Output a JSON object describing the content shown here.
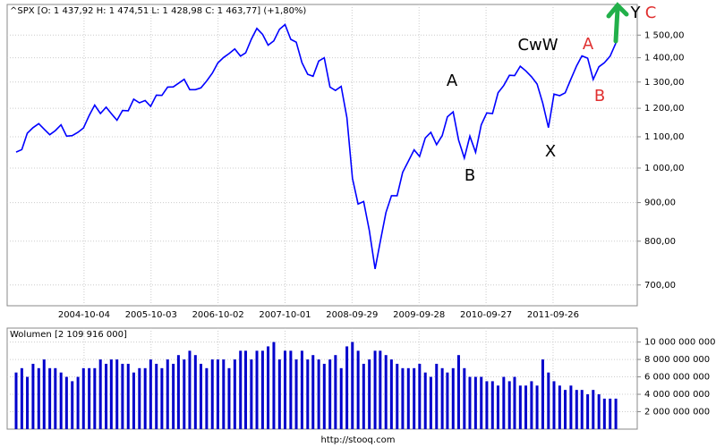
{
  "chart_data": [
    {
      "type": "line",
      "title": "^SPX [O: 1 437,92  H: 1 474,51  L: 1 428,98  C: 1 463,77] (+1,80%)",
      "log_scale": true,
      "grid": true,
      "xlim": [
        "2003-10-01",
        "2012-09-20"
      ],
      "xticks": [
        "2004-10-04",
        "2005-10-03",
        "2006-10-02",
        "2007-10-01",
        "2008-09-29",
        "2009-09-28",
        "2010-09-27",
        "2011-09-26"
      ],
      "ylim": [
        657,
        1647
      ],
      "yticks": [
        {
          "value": 700,
          "label": "700,00"
        },
        {
          "value": 800,
          "label": "800,00"
        },
        {
          "value": 900,
          "label": "900,00"
        },
        {
          "value": 1000,
          "label": "1 000,00"
        },
        {
          "value": 1100,
          "label": "1 100,00"
        },
        {
          "value": 1200,
          "label": "1 200,00"
        },
        {
          "value": 1300,
          "label": "1 300,00"
        },
        {
          "value": 1400,
          "label": "1 400,00"
        },
        {
          "value": 1500,
          "label": "1 500,00"
        }
      ],
      "x": [
        "2003-10",
        "2003-11",
        "2003-12",
        "2004-01",
        "2004-02",
        "2004-03",
        "2004-04",
        "2004-05",
        "2004-06",
        "2004-07",
        "2004-08",
        "2004-09",
        "2004-10",
        "2004-11",
        "2004-12",
        "2005-01",
        "2005-02",
        "2005-03",
        "2005-04",
        "2005-05",
        "2005-06",
        "2005-07",
        "2005-08",
        "2005-09",
        "2005-10",
        "2005-11",
        "2005-12",
        "2006-01",
        "2006-02",
        "2006-03",
        "2006-04",
        "2006-05",
        "2006-06",
        "2006-07",
        "2006-08",
        "2006-09",
        "2006-10",
        "2006-11",
        "2006-12",
        "2007-01",
        "2007-02",
        "2007-03",
        "2007-04",
        "2007-05",
        "2007-06",
        "2007-07",
        "2007-08",
        "2007-09",
        "2007-10",
        "2007-11",
        "2007-12",
        "2008-01",
        "2008-02",
        "2008-03",
        "2008-04",
        "2008-05",
        "2008-06",
        "2008-07",
        "2008-08",
        "2008-09",
        "2008-10",
        "2008-11",
        "2008-12",
        "2009-01",
        "2009-02",
        "2009-03",
        "2009-04",
        "2009-05",
        "2009-06",
        "2009-07",
        "2009-08",
        "2009-09",
        "2009-10",
        "2009-11",
        "2009-12",
        "2010-01",
        "2010-02",
        "2010-03",
        "2010-04",
        "2010-05",
        "2010-06",
        "2010-07",
        "2010-08",
        "2010-09",
        "2010-10",
        "2010-11",
        "2010-12",
        "2011-01",
        "2011-02",
        "2011-03",
        "2011-04",
        "2011-05",
        "2011-06",
        "2011-07",
        "2011-08",
        "2011-09",
        "2011-10",
        "2011-11",
        "2011-12",
        "2012-01",
        "2012-02",
        "2012-03",
        "2012-04",
        "2012-05",
        "2012-06",
        "2012-07",
        "2012-08",
        "2012-09"
      ],
      "series": [
        {
          "color": "#0000ff",
          "values": [
            1050,
            1058,
            1112,
            1131,
            1145,
            1126,
            1107,
            1121,
            1141,
            1102,
            1104,
            1115,
            1130,
            1174,
            1212,
            1181,
            1204,
            1181,
            1157,
            1192,
            1191,
            1234,
            1220,
            1229,
            1207,
            1249,
            1248,
            1280,
            1281,
            1295,
            1311,
            1270,
            1270,
            1277,
            1304,
            1336,
            1378,
            1401,
            1418,
            1438,
            1407,
            1421,
            1482,
            1531,
            1503,
            1455,
            1474,
            1527,
            1549,
            1481,
            1468,
            1379,
            1331,
            1323,
            1386,
            1400,
            1280,
            1267,
            1283,
            1166,
            969,
            896,
            903,
            826,
            735,
            798,
            873,
            919,
            919,
            987,
            1021,
            1057,
            1036,
            1096,
            1115,
            1074,
            1104,
            1169,
            1187,
            1089,
            1031,
            1102,
            1049,
            1141,
            1183,
            1181,
            1258,
            1286,
            1327,
            1326,
            1364,
            1345,
            1321,
            1292,
            1219,
            1131,
            1253,
            1247,
            1258,
            1312,
            1366,
            1408,
            1398,
            1310,
            1362,
            1379,
            1407,
            1464
          ]
        }
      ],
      "annotations": [
        {
          "text": "A",
          "color": "#000000"
        },
        {
          "text": "B",
          "color": "#000000"
        },
        {
          "text": "CwW",
          "color": "#000000"
        },
        {
          "text": "X",
          "color": "#000000"
        },
        {
          "text": "A",
          "color": "#e03030"
        },
        {
          "text": "B",
          "color": "#e03030"
        },
        {
          "text": "Y",
          "color": "#000000"
        },
        {
          "text": "C",
          "color": "#e03030"
        }
      ]
    },
    {
      "type": "bar",
      "title": "Wolumen [2 109 916 000]",
      "grid": true,
      "ylim": [
        0,
        11600000000
      ],
      "yticks": [
        {
          "value": 2000000000,
          "label": "2 000 000 000"
        },
        {
          "value": 4000000000,
          "label": "4 000 000 000"
        },
        {
          "value": 6000000000,
          "label": "6 000 000 000"
        },
        {
          "value": 8000000000,
          "label": "8 000 000 000"
        },
        {
          "value": 10000000000,
          "label": "10 000 000 000"
        }
      ],
      "color": "#0000cc",
      "values": [
        6500000000,
        7000000000,
        6000000000,
        7500000000,
        7000000000,
        8000000000,
        7000000000,
        7000000000,
        6500000000,
        6000000000,
        5500000000,
        6000000000,
        7000000000,
        7000000000,
        7000000000,
        8000000000,
        7500000000,
        8000000000,
        8000000000,
        7500000000,
        7500000000,
        6500000000,
        7000000000,
        7000000000,
        8000000000,
        7500000000,
        7000000000,
        8000000000,
        7500000000,
        8500000000,
        8000000000,
        9000000000,
        8500000000,
        7500000000,
        7000000000,
        8000000000,
        8000000000,
        8000000000,
        7000000000,
        8000000000,
        9000000000,
        9000000000,
        8000000000,
        9000000000,
        9000000000,
        9500000000,
        10000000000,
        8000000000,
        9000000000,
        9000000000,
        8000000000,
        9000000000,
        8000000000,
        8500000000,
        8000000000,
        7500000000,
        8000000000,
        8500000000,
        7000000000,
        9500000000,
        10000000000,
        9000000000,
        7500000000,
        8000000000,
        9000000000,
        9000000000,
        8500000000,
        8000000000,
        7500000000,
        7000000000,
        7000000000,
        7000000000,
        7500000000,
        6500000000,
        6000000000,
        7500000000,
        7000000000,
        6500000000,
        7000000000,
        8500000000,
        7000000000,
        6000000000,
        6000000000,
        6000000000,
        5500000000,
        5500000000,
        5000000000,
        6000000000,
        5500000000,
        6000000000,
        5000000000,
        5000000000,
        5500000000,
        5000000000,
        8000000000,
        6500000000,
        5500000000,
        5000000000,
        4500000000,
        5000000000,
        4500000000,
        4500000000,
        4000000000,
        4500000000,
        4000000000,
        3500000000,
        3500000000,
        3500000000
      ]
    }
  ],
  "footer": "http://stooq.com"
}
